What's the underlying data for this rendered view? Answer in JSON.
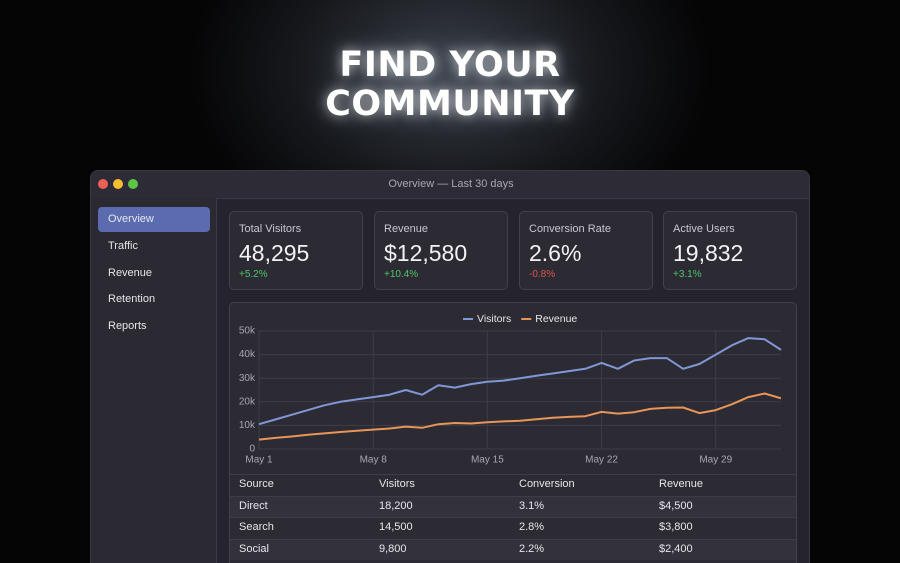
{
  "hero": {
    "title_lines": [
      "FIND YOUR",
      "COMMUNITY"
    ]
  },
  "window": {
    "title": "Overview — Last 30 days"
  },
  "sidebar": {
    "items": [
      "Overview",
      "Traffic",
      "Revenue",
      "Retention",
      "Reports"
    ],
    "active_index": 0
  },
  "kpis": [
    {
      "label": "Total Visitors",
      "value": "48,295",
      "change": "+5.2%"
    },
    {
      "label": "Revenue",
      "value": "$12,580",
      "change": "+10.4%"
    },
    {
      "label": "Conversion Rate",
      "value": "2.6%",
      "change": "-0.8%"
    },
    {
      "label": "Active Users",
      "value": "19,832",
      "change": "+3.1%"
    }
  ],
  "chart_data": {
    "type": "line",
    "x": [
      1,
      2,
      3,
      4,
      5,
      6,
      7,
      8,
      9,
      10,
      11,
      12,
      13,
      14,
      15,
      16,
      17,
      18,
      19,
      20,
      21,
      22,
      23,
      24,
      25,
      26,
      27,
      28,
      29,
      30,
      31,
      32,
      33
    ],
    "xlim": [
      1,
      33
    ],
    "xticks": [
      {
        "value": 1,
        "label": "May 1"
      },
      {
        "value": 8,
        "label": "May 8"
      },
      {
        "value": 15,
        "label": "May 15"
      },
      {
        "value": 22,
        "label": "May 22"
      },
      {
        "value": 29,
        "label": "May 29"
      }
    ],
    "ylim": [
      0,
      50000
    ],
    "yticks": [
      0,
      {
        "value": 10000,
        "label": "10k"
      },
      {
        "value": 20000,
        "label": "20k"
      },
      {
        "value": 30000,
        "label": "30k"
      },
      {
        "value": 40000,
        "label": "40k"
      },
      {
        "value": 50000,
        "label": "50k"
      }
    ],
    "grid": true,
    "series": [
      {
        "name": "Visitors",
        "color": "#8197d6",
        "values": [
          10500,
          12500,
          14500,
          16500,
          18500,
          20000,
          21000,
          22000,
          23000,
          25000,
          23000,
          27000,
          26000,
          27500,
          28500,
          29000,
          30000,
          31000,
          32000,
          33000,
          34000,
          36500,
          34000,
          37500,
          38500,
          38500,
          34000,
          36000,
          40000,
          44000,
          47000,
          46500,
          42000
        ]
      },
      {
        "name": "Revenue",
        "color": "#e8955a",
        "values": [
          4000,
          4700,
          5300,
          6000,
          6600,
          7200,
          7700,
          8200,
          8700,
          9500,
          9000,
          10500,
          11000,
          10800,
          11300,
          11700,
          12000,
          12600,
          13200,
          13600,
          13900,
          15700,
          15000,
          15600,
          17000,
          17500,
          17600,
          15200,
          16500,
          19000,
          22000,
          23500,
          21500
        ]
      }
    ]
  },
  "table": {
    "headers": [
      "Source",
      "Visitors",
      "Conversion",
      "Revenue"
    ],
    "rows": [
      [
        "Direct",
        "18,200",
        "3.1%",
        "$4,500"
      ],
      [
        "Search",
        "14,500",
        "2.8%",
        "$3,800"
      ],
      [
        "Social",
        "9,800",
        "2.2%",
        "$2,400"
      ]
    ]
  }
}
